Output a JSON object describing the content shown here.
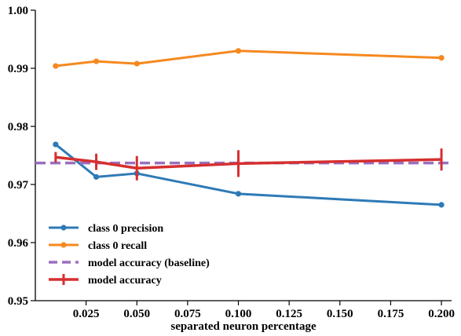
{
  "chart_data": {
    "type": "line",
    "xlabel": "separated neuron percentage",
    "ylabel": "",
    "xlim": [
      0.0,
      0.205
    ],
    "ylim": [
      0.95,
      1.0
    ],
    "x_ticks": [
      0.025,
      0.05,
      0.075,
      0.1,
      0.125,
      0.15,
      0.175,
      0.2
    ],
    "x_tick_labels": [
      "0.025",
      "0.050",
      "0.075",
      "0.100",
      "0.125",
      "0.150",
      "0.175",
      "0.200"
    ],
    "y_ticks": [
      0.95,
      0.96,
      0.97,
      0.98,
      0.99,
      1.0
    ],
    "y_tick_labels": [
      "0.95",
      "0.96",
      "0.97",
      "0.98",
      "0.99",
      "1.00"
    ],
    "grid": false,
    "legend_position": "lower-left",
    "x": [
      0.01,
      0.03,
      0.05,
      0.1,
      0.2
    ],
    "series": [
      {
        "name": "class 0 precision",
        "color": "#2e7ab6",
        "style": "solid-markers",
        "values": [
          0.9769,
          0.9713,
          0.9719,
          0.9684,
          0.9665
        ]
      },
      {
        "name": "class 0 recall",
        "color": "#f5891f",
        "style": "solid-markers",
        "values": [
          0.9904,
          0.9912,
          0.9908,
          0.993,
          0.9918
        ]
      },
      {
        "name": "model accuracy (baseline)",
        "color": "#9b6fc0",
        "style": "dashed",
        "values": [
          0.9737,
          0.9737,
          0.9737,
          0.9737,
          0.9737
        ]
      },
      {
        "name": "model accuracy",
        "color": "#d62f2f",
        "style": "errorbar",
        "values": [
          0.9747,
          0.9739,
          0.9728,
          0.9736,
          0.9743
        ],
        "errors": [
          0.0009,
          0.0014,
          0.0021,
          0.0023,
          0.0019
        ]
      }
    ]
  }
}
